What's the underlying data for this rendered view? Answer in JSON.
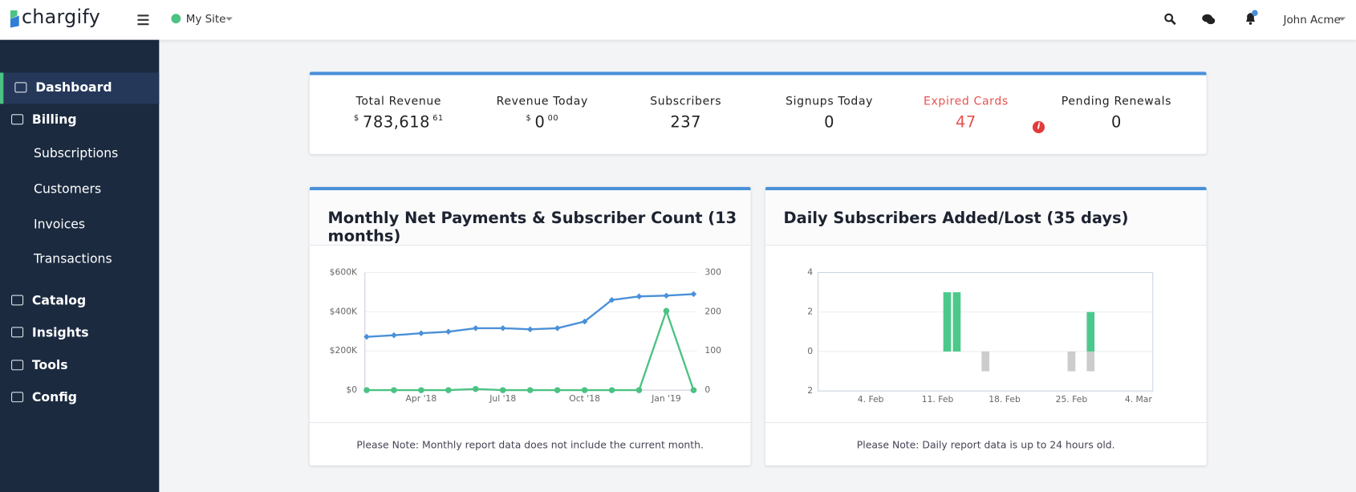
{
  "header": {
    "logo": "chargify",
    "site": "My Site",
    "user": "John Acme"
  },
  "nav": [
    {
      "label": "Dashboard",
      "active": true
    },
    {
      "label": "Billing"
    },
    {
      "label": "Subscriptions",
      "sub": true
    },
    {
      "label": "Customers",
      "sub": true
    },
    {
      "label": "Invoices",
      "sub": true
    },
    {
      "label": "Transactions",
      "sub": true
    },
    {
      "label": "Catalog"
    },
    {
      "label": "Insights"
    },
    {
      "label": "Tools"
    },
    {
      "label": "Config"
    }
  ],
  "stats": [
    {
      "label": "Total Revenue",
      "currency": "$",
      "value": "783,618",
      "cents": "61"
    },
    {
      "label": "Revenue Today",
      "currency": "$",
      "value": 0,
      "cents": "00"
    },
    {
      "label": "Subscribers",
      "value": 237
    },
    {
      "label": "Signups Today",
      "value": 0
    },
    {
      "label": "Expired Cards",
      "value": 47,
      "alert": true
    },
    {
      "label": "Pending Renewals",
      "value": 0
    }
  ],
  "chart_data": [
    {
      "type": "line",
      "title": "Monthly Net Payments & Subscriber Count (13 months)",
      "note": "Please Note: Monthly report data does not include the current month.",
      "categories": [
        null,
        null,
        "Apr '18",
        null,
        null,
        "Jul '18",
        null,
        null,
        "Oct '18",
        null,
        null,
        "Jan '19",
        null
      ],
      "series": [
        {
          "color": "#4a90d9",
          "axis": "y2",
          "values": [
            136,
            140,
            145,
            149,
            158,
            158,
            155,
            158,
            175,
            230,
            239,
            241,
            245
          ]
        },
        {
          "color": "#4cc283",
          "values": [
            0,
            0,
            0,
            0,
            6000,
            0,
            0,
            0,
            0,
            0,
            0,
            404000,
            0
          ]
        }
      ],
      "ylim": [
        0,
        600000
      ],
      "yticks": [
        {
          "value": 0,
          "label": "$0"
        },
        {
          "value": 200000,
          "label": "$200K"
        },
        {
          "value": 400000,
          "label": "$400K"
        },
        {
          "value": 600000,
          "label": "$600K"
        }
      ],
      "y2lim": [
        0,
        300
      ],
      "y2ticks": [
        0,
        100,
        200,
        300
      ],
      "grid": true
    },
    {
      "type": "bar",
      "title": "Daily Subscribers Added/Lost (35 days)",
      "note": "Please Note: Daily report data is up to 24 hours old.",
      "categories": [
        null,
        null,
        null,
        null,
        null,
        "4. Feb",
        null,
        null,
        null,
        null,
        null,
        null,
        "11. Feb",
        null,
        null,
        null,
        null,
        null,
        null,
        "18. Feb",
        null,
        null,
        null,
        null,
        null,
        null,
        "25. Feb",
        null,
        null,
        null,
        null,
        null,
        null,
        "4. Mar",
        null
      ],
      "series": [
        {
          "color": "#4cc98a",
          "values": [
            0,
            0,
            0,
            0,
            0,
            0,
            0,
            0,
            0,
            0,
            0,
            0,
            0,
            3,
            3,
            0,
            0,
            0,
            0,
            0,
            0,
            0,
            0,
            0,
            0,
            0,
            0,
            0,
            2,
            0,
            0,
            0,
            0,
            0,
            0
          ]
        },
        {
          "color": "#cccccc",
          "values": [
            0,
            0,
            0,
            0,
            0,
            0,
            0,
            0,
            0,
            0,
            0,
            0,
            0,
            0,
            0,
            0,
            0,
            -1,
            0,
            0,
            0,
            0,
            0,
            0,
            0,
            0,
            -1,
            0,
            -1,
            0,
            0,
            0,
            0,
            0,
            0
          ]
        }
      ],
      "ylim": [
        -2,
        4
      ],
      "yticks": [
        {
          "value": -2,
          "label": "2"
        },
        0,
        2,
        4
      ],
      "grid": true
    }
  ]
}
